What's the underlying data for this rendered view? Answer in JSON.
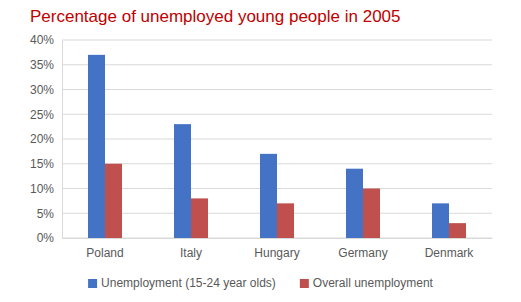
{
  "chart_data": {
    "type": "bar",
    "title": "Percentage of unemployed young people in 2005",
    "categories": [
      "Poland",
      "Italy",
      "Hungary",
      "Germany",
      "Denmark"
    ],
    "series": [
      {
        "name": "Unemployment (15-24 year olds)",
        "color": "#4472c4",
        "values": [
          37,
          23,
          17,
          14,
          7
        ]
      },
      {
        "name": "Overall unemployment",
        "color": "#c0504d",
        "values": [
          15,
          8,
          7,
          10,
          3
        ]
      }
    ],
    "ylim": [
      0,
      40
    ],
    "yticks": [
      {
        "value": 0,
        "label": "0%"
      },
      {
        "value": 5,
        "label": "5%"
      },
      {
        "value": 10,
        "label": "10%"
      },
      {
        "value": 15,
        "label": "15%"
      },
      {
        "value": 20,
        "label": "20%"
      },
      {
        "value": 25,
        "label": "25%"
      },
      {
        "value": 30,
        "label": "30%"
      },
      {
        "value": 35,
        "label": "35%"
      },
      {
        "value": 40,
        "label": "40%"
      }
    ],
    "grid": true,
    "legend": "bottom"
  }
}
